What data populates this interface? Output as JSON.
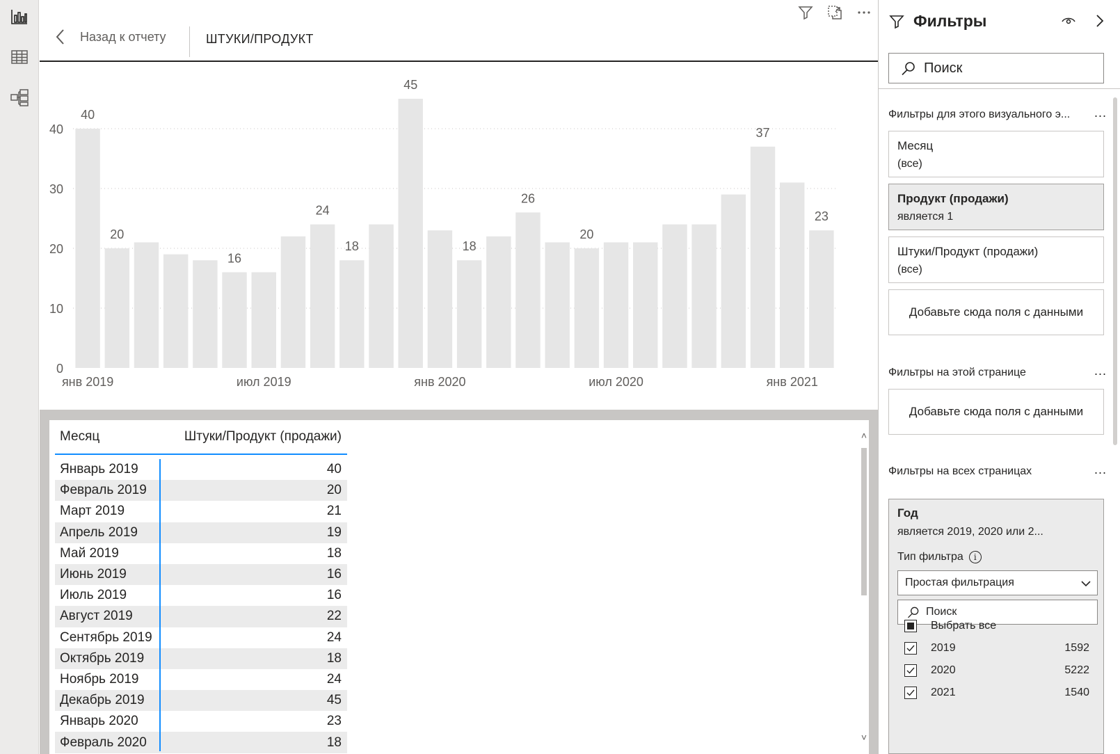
{
  "focus_header": {
    "back_label": "Назад к отчету",
    "title": "ШТУКИ/ПРОДУКТ"
  },
  "chart_data": {
    "type": "bar",
    "categories": [
      "янв 2019",
      "фев 2019",
      "мар 2019",
      "апр 2019",
      "май 2019",
      "июн 2019",
      "июл 2019",
      "авг 2019",
      "сен 2019",
      "окт 2019",
      "ноя 2019",
      "дек 2019",
      "янв 2020",
      "фев 2020",
      "мар 2020",
      "апр 2020",
      "май 2020",
      "июн 2020",
      "июл 2020",
      "авг 2020",
      "сен 2020",
      "окт 2020",
      "ноя 2020",
      "дек 2020",
      "янв 2021",
      "фев 2021"
    ],
    "values": [
      40,
      20,
      21,
      19,
      18,
      16,
      16,
      22,
      24,
      18,
      24,
      45,
      23,
      18,
      22,
      26,
      21,
      20,
      21,
      21,
      24,
      24,
      29,
      37,
      31,
      23
    ],
    "data_labels": [
      {
        "index": 0,
        "text": "40"
      },
      {
        "index": 1,
        "text": "20"
      },
      {
        "index": 5,
        "text": "16"
      },
      {
        "index": 8,
        "text": "24"
      },
      {
        "index": 9,
        "text": "18"
      },
      {
        "index": 11,
        "text": "45"
      },
      {
        "index": 13,
        "text": "18"
      },
      {
        "index": 15,
        "text": "26"
      },
      {
        "index": 17,
        "text": "20"
      },
      {
        "index": 23,
        "text": "37"
      },
      {
        "index": 25,
        "text": "23"
      }
    ],
    "x_ticks": [
      {
        "index": 0,
        "label": "янв 2019"
      },
      {
        "index": 6,
        "label": "июл 2019"
      },
      {
        "index": 12,
        "label": "янв 2020"
      },
      {
        "index": 18,
        "label": "июл 2020"
      },
      {
        "index": 24,
        "label": "янв 2021"
      }
    ],
    "y_ticks": [
      0,
      10,
      20,
      30,
      40
    ],
    "ylim": [
      0,
      50
    ],
    "grid": true,
    "bar_color": "#e6e6e6",
    "title": "",
    "xlabel": "",
    "ylabel": ""
  },
  "table": {
    "headers": [
      "Месяц",
      "Штуки/Продукт (продажи)"
    ],
    "rows": [
      [
        "Январь 2019",
        "40"
      ],
      [
        "Февраль 2019",
        "20"
      ],
      [
        "Март 2019",
        "21"
      ],
      [
        "Апрель 2019",
        "19"
      ],
      [
        "Май 2019",
        "18"
      ],
      [
        "Июнь 2019",
        "16"
      ],
      [
        "Июль 2019",
        "16"
      ],
      [
        "Август 2019",
        "22"
      ],
      [
        "Сентябрь 2019",
        "24"
      ],
      [
        "Октябрь 2019",
        "18"
      ],
      [
        "Ноябрь 2019",
        "24"
      ],
      [
        "Декабрь 2019",
        "45"
      ],
      [
        "Январь 2020",
        "23"
      ],
      [
        "Февраль 2020",
        "18"
      ]
    ]
  },
  "filters": {
    "title": "Фильтры",
    "search_placeholder": "Поиск",
    "visual_section": "Фильтры для этого визуального э...",
    "visual_cards": [
      {
        "title": "Месяц",
        "sub": "(все)"
      },
      {
        "title": "Продукт (продажи)",
        "sub": "является 1"
      },
      {
        "title": "Штуки/Продукт (продажи)",
        "sub": "(все)"
      }
    ],
    "dropzone_label": "Добавьте сюда поля с данными",
    "page_section": "Фильтры на этой странице",
    "all_section": "Фильтры на всех страницах",
    "more": "...",
    "year": {
      "title": "Год",
      "sub": "является 2019, 2020 или 2...",
      "type_label": "Тип фильтра",
      "select_value": "Простая фильтрация",
      "search_placeholder": "Поиск",
      "select_all": "Выбрать все",
      "items": [
        {
          "label": "2019",
          "count": "1592"
        },
        {
          "label": "2020",
          "count": "5222"
        },
        {
          "label": "2021",
          "count": "1540"
        }
      ]
    }
  },
  "colors": {
    "accent": "#118dff",
    "bar": "#e6e6e6",
    "canvas": "#c8c6c4"
  }
}
